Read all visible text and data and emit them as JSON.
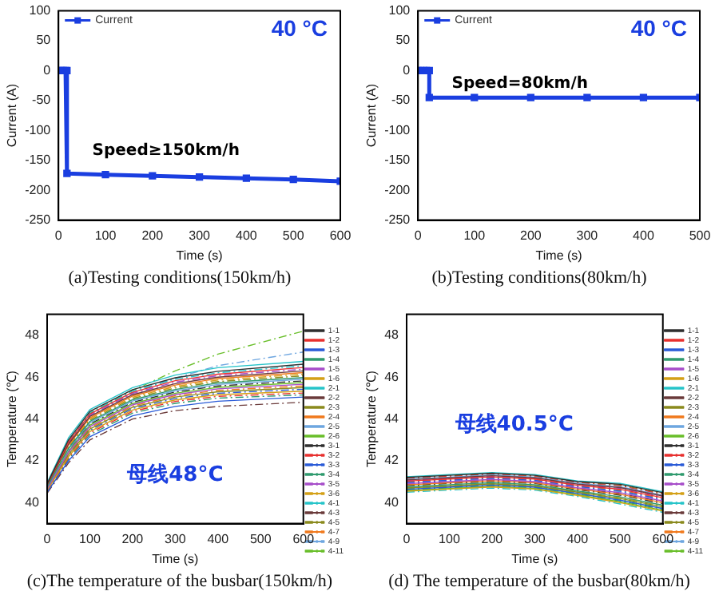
{
  "chart_data": [
    {
      "type": "line",
      "title": "40 °C",
      "xlabel": "Time (s)",
      "ylabel": "Current (A)",
      "annotations": [
        "Speed≥150km/h",
        "(a)Testing conditions(150km/h)"
      ],
      "xlim": [
        0,
        600
      ],
      "xticks": [
        0,
        100,
        200,
        300,
        400,
        500,
        600
      ],
      "ylim": [
        -250,
        100
      ],
      "yticks": [
        -250,
        -200,
        -150,
        -100,
        -50,
        0,
        50,
        100
      ],
      "grid": false,
      "legend": "top left",
      "marker": "square",
      "series": [
        {
          "name": "Current",
          "color": "#1a3ee0",
          "x": [
            0,
            5,
            10,
            15,
            18,
            18,
            100,
            200,
            300,
            400,
            500,
            600
          ],
          "values": [
            0,
            0,
            0,
            0,
            0,
            -172,
            -174,
            -176,
            -178,
            -180,
            -182,
            -185
          ]
        }
      ]
    },
    {
      "type": "line",
      "title": "40 °C",
      "xlabel": "Time (s)",
      "ylabel": "Current (A)",
      "annotations": [
        "Speed=80km/h",
        "(b)Testing conditions(80km/h)"
      ],
      "xlim": [
        0,
        500
      ],
      "xticks": [
        0,
        100,
        200,
        300,
        400,
        500
      ],
      "ylim": [
        -250,
        100
      ],
      "yticks": [
        -250,
        -200,
        -150,
        -100,
        -50,
        0,
        50,
        100
      ],
      "grid": false,
      "legend": "top left",
      "marker": "square",
      "series": [
        {
          "name": "Current",
          "color": "#1a3ee0",
          "x": [
            0,
            5,
            10,
            15,
            20,
            20,
            100,
            200,
            300,
            400,
            500
          ],
          "values": [
            0,
            0,
            0,
            0,
            0,
            -45,
            -45,
            -45,
            -45,
            -45,
            -45
          ]
        }
      ]
    },
    {
      "type": "line",
      "xlabel": "Time (s)",
      "ylabel": "Temperature (℃)",
      "annotations": [
        "母线48°C",
        "(c)The temperature of the busbar(150km/h)"
      ],
      "x": [
        0,
        50,
        100,
        200,
        300,
        400,
        600
      ],
      "xlim": [
        0,
        600
      ],
      "xticks": [
        0,
        100,
        200,
        300,
        400,
        500,
        600
      ],
      "ylim": [
        39,
        49
      ],
      "yticks": [
        40,
        42,
        44,
        46,
        48
      ],
      "grid": false,
      "legend": "right",
      "marker": "none",
      "series": [
        {
          "name": "1-1",
          "color": "#2f2f2f",
          "line_style": "solid",
          "values": [
            40.9,
            43.0,
            44.36,
            45.4,
            45.97,
            46.28,
            46.62
          ]
        },
        {
          "name": "1-2",
          "color": "#e8312f",
          "line_style": "solid",
          "values": [
            40.86,
            42.9,
            44.24,
            45.28,
            45.83,
            46.14,
            46.46
          ]
        },
        {
          "name": "1-3",
          "color": "#2a5bd7",
          "line_style": "solid",
          "values": [
            40.5,
            42.0,
            43.15,
            44.15,
            44.6,
            44.85,
            45.05
          ]
        },
        {
          "name": "1-4",
          "color": "#2f9a6e",
          "line_style": "solid",
          "values": [
            40.74,
            42.6,
            43.88,
            44.92,
            45.41,
            45.72,
            45.98
          ]
        },
        {
          "name": "1-5",
          "color": "#a64dc9",
          "line_style": "solid",
          "values": [
            40.66,
            42.4,
            43.64,
            44.68,
            45.17,
            45.44,
            45.66
          ]
        },
        {
          "name": "1-6",
          "color": "#d4a017",
          "line_style": "solid",
          "values": [
            40.58,
            42.2,
            43.4,
            44.43,
            44.91,
            45.16,
            45.33
          ]
        },
        {
          "name": "2-1",
          "color": "#27c4c9",
          "line_style": "solid",
          "values": [
            40.95,
            43.1,
            44.45,
            45.5,
            46.1,
            46.45,
            46.75
          ]
        },
        {
          "name": "2-2",
          "color": "#6b3b3b",
          "line_style": "solid",
          "values": [
            40.82,
            42.8,
            44.12,
            45.16,
            45.69,
            46.0,
            46.3
          ]
        },
        {
          "name": "2-3",
          "color": "#8a8a1e",
          "line_style": "solid",
          "values": [
            40.62,
            42.3,
            43.52,
            44.56,
            45.05,
            45.3,
            45.5
          ]
        },
        {
          "name": "2-4",
          "color": "#f07a1e",
          "line_style": "solid",
          "values": [
            40.8,
            42.75,
            44.06,
            45.1,
            45.62,
            45.93,
            46.22
          ]
        },
        {
          "name": "2-5",
          "color": "#6ea6e0",
          "line_style": "solid",
          "values": [
            40.72,
            42.55,
            43.82,
            44.86,
            45.35,
            45.65,
            45.9
          ]
        },
        {
          "name": "2-6",
          "color": "#6abf2b",
          "line_style": "solid",
          "values": [
            40.68,
            42.45,
            43.7,
            44.74,
            45.23,
            45.51,
            45.74
          ]
        },
        {
          "name": "3-1",
          "color": "#2f2f2f",
          "line_style": "dashed",
          "values": [
            40.7,
            42.5,
            43.76,
            44.8,
            45.29,
            45.58,
            45.82
          ]
        },
        {
          "name": "3-2",
          "color": "#e8312f",
          "line_style": "dashed",
          "values": [
            40.55,
            42.15,
            43.33,
            44.36,
            44.84,
            45.08,
            45.24
          ]
        },
        {
          "name": "3-3",
          "color": "#2a5bd7",
          "line_style": "dashed",
          "values": [
            40.6,
            42.25,
            43.46,
            44.5,
            44.98,
            45.23,
            45.42
          ]
        },
        {
          "name": "3-4",
          "color": "#2f9a6e",
          "line_style": "dashed",
          "values": [
            40.52,
            42.08,
            43.25,
            44.28,
            44.75,
            45.0,
            45.15
          ]
        },
        {
          "name": "3-5",
          "color": "#a64dc9",
          "line_style": "dashed",
          "values": [
            40.84,
            42.85,
            44.18,
            45.22,
            45.76,
            46.07,
            46.38
          ]
        },
        {
          "name": "3-6",
          "color": "#d4a017",
          "line_style": "dashed",
          "values": [
            40.78,
            42.7,
            44.0,
            45.04,
            45.55,
            45.86,
            46.14
          ]
        },
        {
          "name": "4-1",
          "color": "#27c4c9",
          "line_style": "dashed",
          "values": [
            40.88,
            42.95,
            44.3,
            45.34,
            45.9,
            46.21,
            46.54
          ]
        },
        {
          "name": "4-3",
          "color": "#6b3b3b",
          "line_style": "dashed",
          "values": [
            40.45,
            41.9,
            43.0,
            44.0,
            44.4,
            44.6,
            44.8
          ]
        },
        {
          "name": "4-5",
          "color": "#8a8a1e",
          "line_style": "dashed",
          "values": [
            40.76,
            42.65,
            43.94,
            44.98,
            45.48,
            45.79,
            46.06
          ]
        },
        {
          "name": "4-7",
          "color": "#f07a1e",
          "line_style": "dashed",
          "values": [
            40.64,
            42.35,
            43.58,
            44.62,
            45.11,
            45.37,
            45.58
          ]
        },
        {
          "name": "4-9",
          "color": "#6ea6e0",
          "line_style": "dashed",
          "values": [
            40.79,
            42.82,
            44.15,
            45.25,
            45.95,
            46.55,
            47.2
          ]
        },
        {
          "name": "4-11",
          "color": "#6abf2b",
          "line_style": "dashed",
          "values": [
            40.87,
            42.92,
            44.27,
            45.36,
            46.3,
            47.1,
            48.2
          ]
        }
      ]
    },
    {
      "type": "line",
      "xlabel": "Time (s)",
      "ylabel": "Temperature (℃)",
      "annotations": [
        "母线40.5°C",
        "(d) The temperature of the busbar(80km/h)"
      ],
      "x": [
        0,
        100,
        200,
        300,
        400,
        500,
        600
      ],
      "xlim": [
        0,
        600
      ],
      "xticks": [
        0,
        100,
        200,
        300,
        400,
        500,
        600
      ],
      "ylim": [
        39,
        49
      ],
      "yticks": [
        40,
        42,
        44,
        46,
        48
      ],
      "grid": false,
      "legend": "right",
      "marker": "none",
      "series": [
        {
          "name": "1-1",
          "color": "#2f2f2f",
          "line_style": "solid",
          "values": [
            41.21,
            41.31,
            41.41,
            41.31,
            41.01,
            40.88,
            40.48
          ]
        },
        {
          "name": "1-2",
          "color": "#e8312f",
          "line_style": "solid",
          "values": [
            41.03,
            41.13,
            41.23,
            41.13,
            40.83,
            40.64,
            40.24
          ]
        },
        {
          "name": "1-3",
          "color": "#2a5bd7",
          "line_style": "solid",
          "values": [
            40.64,
            40.74,
            40.84,
            40.74,
            40.44,
            40.12,
            39.72
          ]
        },
        {
          "name": "1-4",
          "color": "#2f9a6e",
          "line_style": "solid",
          "values": [
            40.76,
            40.86,
            40.96,
            40.86,
            40.56,
            40.28,
            39.88
          ]
        },
        {
          "name": "1-5",
          "color": "#a64dc9",
          "line_style": "solid",
          "values": [
            40.91,
            41.01,
            41.11,
            41.01,
            40.71,
            40.48,
            40.08
          ]
        },
        {
          "name": "1-6",
          "color": "#d4a017",
          "line_style": "solid",
          "values": [
            40.55,
            40.65,
            40.75,
            40.65,
            40.35,
            40.0,
            39.6
          ]
        },
        {
          "name": "2-1",
          "color": "#27c4c9",
          "line_style": "solid",
          "values": [
            41.24,
            41.34,
            41.44,
            41.34,
            41.04,
            40.92,
            40.52
          ]
        },
        {
          "name": "2-2",
          "color": "#6b3b3b",
          "line_style": "solid",
          "values": [
            41.09,
            41.19,
            41.29,
            41.19,
            40.89,
            40.72,
            40.32
          ]
        },
        {
          "name": "2-3",
          "color": "#8a8a1e",
          "line_style": "solid",
          "values": [
            40.7,
            40.8,
            40.9,
            40.8,
            40.5,
            40.2,
            39.8
          ]
        },
        {
          "name": "2-4",
          "color": "#f07a1e",
          "line_style": "solid",
          "values": [
            40.85,
            40.95,
            41.05,
            40.95,
            40.65,
            40.4,
            40.0
          ]
        },
        {
          "name": "2-5",
          "color": "#6ea6e0",
          "line_style": "solid",
          "values": [
            41.12,
            41.22,
            41.32,
            41.22,
            40.92,
            40.76,
            40.36
          ]
        },
        {
          "name": "2-6",
          "color": "#6abf2b",
          "line_style": "solid",
          "values": [
            40.58,
            40.68,
            40.78,
            40.68,
            40.38,
            40.04,
            39.64
          ]
        },
        {
          "name": "3-1",
          "color": "#2f2f2f",
          "line_style": "dashed",
          "values": [
            40.82,
            40.92,
            41.02,
            40.92,
            40.62,
            40.36,
            39.96
          ]
        },
        {
          "name": "3-2",
          "color": "#e8312f",
          "line_style": "dashed",
          "values": [
            41.15,
            41.25,
            41.35,
            41.25,
            40.95,
            40.8,
            40.4
          ]
        },
        {
          "name": "3-3",
          "color": "#2a5bd7",
          "line_style": "dashed",
          "values": [
            40.97,
            41.07,
            41.17,
            41.07,
            40.77,
            40.56,
            40.16
          ]
        },
        {
          "name": "3-4",
          "color": "#2f9a6e",
          "line_style": "dashed",
          "values": [
            40.61,
            40.71,
            40.81,
            40.71,
            40.41,
            40.08,
            39.68
          ]
        },
        {
          "name": "3-5",
          "color": "#a64dc9",
          "line_style": "dashed",
          "values": [
            41.06,
            41.16,
            41.26,
            41.16,
            40.86,
            40.68,
            40.28
          ]
        },
        {
          "name": "3-6",
          "color": "#d4a017",
          "line_style": "dashed",
          "values": [
            40.73,
            40.83,
            40.93,
            40.83,
            40.53,
            40.24,
            39.84
          ]
        },
        {
          "name": "4-1",
          "color": "#27c4c9",
          "line_style": "dashed",
          "values": [
            40.5,
            40.6,
            40.7,
            40.6,
            40.3,
            39.94,
            39.54
          ]
        },
        {
          "name": "4-3",
          "color": "#6b3b3b",
          "line_style": "dashed",
          "values": [
            40.88,
            40.98,
            41.08,
            40.98,
            40.68,
            40.44,
            40.04
          ]
        },
        {
          "name": "4-5",
          "color": "#8a8a1e",
          "line_style": "dashed",
          "values": [
            41.18,
            41.28,
            41.38,
            41.28,
            40.98,
            40.84,
            40.44
          ]
        },
        {
          "name": "4-7",
          "color": "#f07a1e",
          "line_style": "dashed",
          "values": [
            41.0,
            41.1,
            41.2,
            41.1,
            40.8,
            40.6,
            40.2
          ]
        },
        {
          "name": "4-9",
          "color": "#6ea6e0",
          "line_style": "dashed",
          "values": [
            40.94,
            41.04,
            41.14,
            41.04,
            40.74,
            40.52,
            40.12
          ]
        },
        {
          "name": "4-11",
          "color": "#6abf2b",
          "line_style": "dashed",
          "values": [
            40.67,
            40.77,
            40.87,
            40.77,
            40.47,
            40.16,
            39.76
          ]
        }
      ]
    }
  ]
}
